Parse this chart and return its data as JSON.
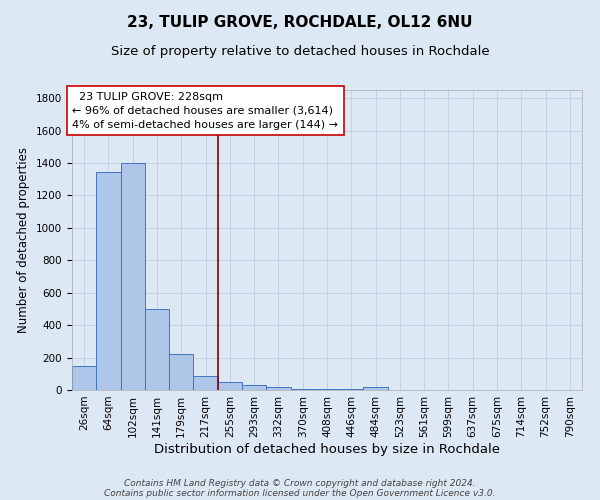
{
  "title": "23, TULIP GROVE, ROCHDALE, OL12 6NU",
  "subtitle": "Size of property relative to detached houses in Rochdale",
  "xlabel": "Distribution of detached houses by size in Rochdale",
  "ylabel": "Number of detached properties",
  "categories": [
    "26sqm",
    "64sqm",
    "102sqm",
    "141sqm",
    "179sqm",
    "217sqm",
    "255sqm",
    "293sqm",
    "332sqm",
    "370sqm",
    "408sqm",
    "446sqm",
    "484sqm",
    "523sqm",
    "561sqm",
    "599sqm",
    "637sqm",
    "675sqm",
    "714sqm",
    "752sqm",
    "790sqm"
  ],
  "values": [
    145,
    1345,
    1400,
    500,
    225,
    85,
    50,
    30,
    20,
    5,
    5,
    5,
    20,
    0,
    0,
    0,
    0,
    0,
    0,
    0,
    0
  ],
  "bar_color": "#aec6e8",
  "bar_edge_color": "#4472c4",
  "bg_color": "#dde8f5",
  "grid_color": "#c0cfe0",
  "property_line_x": 5.5,
  "property_line_color": "#8b0000",
  "annotation_text": "  23 TULIP GROVE: 228sqm\n← 96% of detached houses are smaller (3,614)\n4% of semi-detached houses are larger (144) →",
  "annotation_box_color": "#ffffff",
  "annotation_box_edge": "#cc0000",
  "ylim": [
    0,
    1850
  ],
  "yticks": [
    0,
    200,
    400,
    600,
    800,
    1000,
    1200,
    1400,
    1600,
    1800
  ],
  "footer_line1": "Contains HM Land Registry data © Crown copyright and database right 2024.",
  "footer_line2": "Contains public sector information licensed under the Open Government Licence v3.0.",
  "title_fontsize": 11,
  "subtitle_fontsize": 9.5,
  "xlabel_fontsize": 9.5,
  "ylabel_fontsize": 8.5,
  "tick_fontsize": 7.5,
  "annotation_fontsize": 8,
  "footer_fontsize": 6.5
}
